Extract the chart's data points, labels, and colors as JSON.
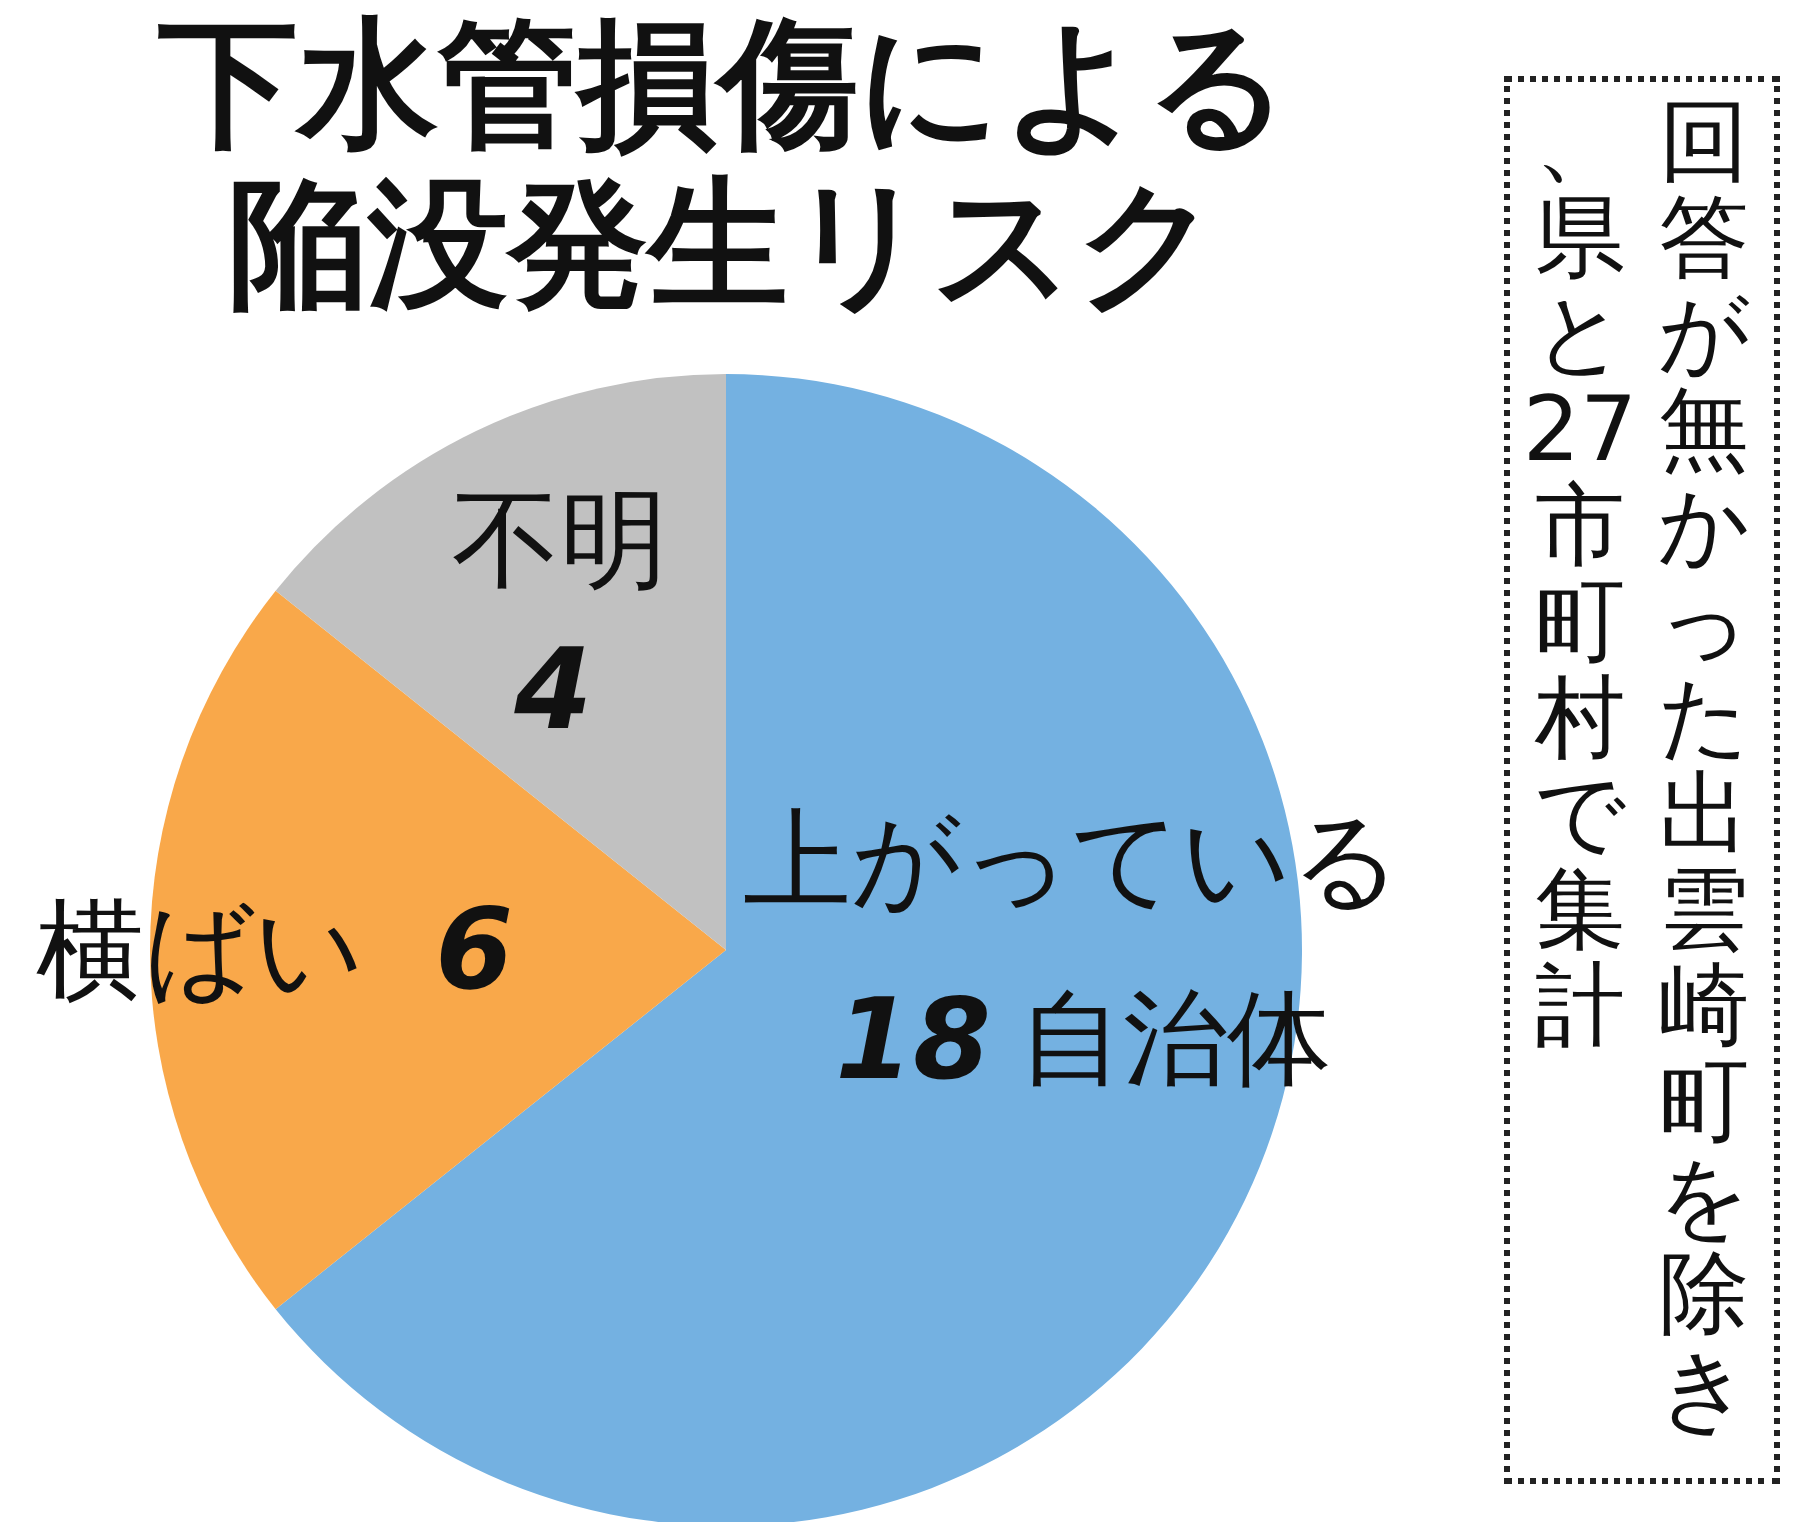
{
  "chart_data": {
    "type": "pie",
    "title": "下水管損傷による陥没発生リスク",
    "categories": [
      "上がっている",
      "横ばい",
      "不明"
    ],
    "values": [
      18,
      6,
      4
    ],
    "value_labels": [
      "18 自治体",
      "6",
      "4"
    ],
    "colors": [
      "#74b1e1",
      "#f9a84a",
      "#c1c1c1"
    ],
    "annotations": [
      "回答が無かった出雲崎町を除き、県と27市町村で集計"
    ],
    "legend": false
  }
}
